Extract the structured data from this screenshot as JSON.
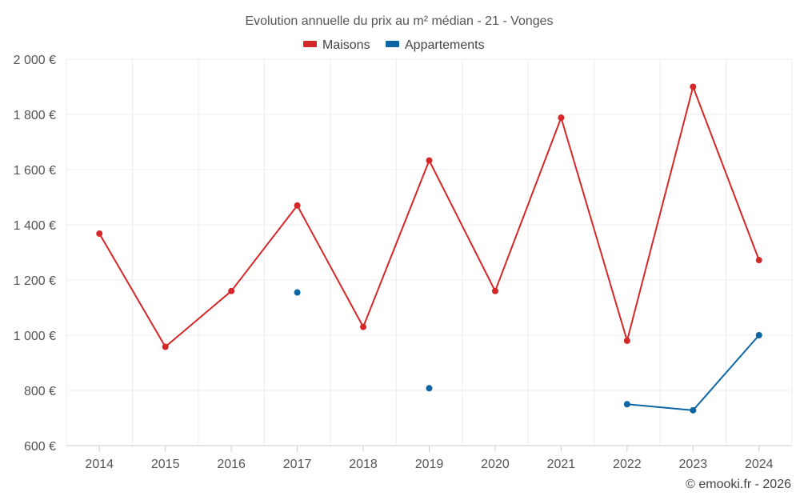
{
  "chart_data": {
    "type": "line",
    "title": "Evolution annuelle du prix au m² médian - 21 - Vonges",
    "xlabel": "",
    "ylabel": "",
    "categories": [
      "2014",
      "2015",
      "2016",
      "2017",
      "2018",
      "2019",
      "2020",
      "2021",
      "2022",
      "2023",
      "2024"
    ],
    "ylim": [
      600,
      2000
    ],
    "yticks": [
      600,
      800,
      1000,
      1200,
      1400,
      1600,
      1800,
      2000
    ],
    "ytick_labels": [
      "600 €",
      "800 €",
      "1 000 €",
      "1 200 €",
      "1 400 €",
      "1 600 €",
      "1 800 €",
      "2 000 €"
    ],
    "grid": true,
    "legend_position": "top-center",
    "series": [
      {
        "name": "Maisons",
        "color": "#d62728",
        "values": [
          1368,
          958,
          1160,
          1470,
          1030,
          1633,
          1160,
          1788,
          980,
          1900,
          1272
        ]
      },
      {
        "name": "Appartements",
        "color": "#0b66a3",
        "values": [
          null,
          null,
          null,
          1155,
          null,
          808,
          null,
          null,
          750,
          728,
          1000
        ]
      }
    ]
  },
  "credit": "© emooki.fr - 2026"
}
